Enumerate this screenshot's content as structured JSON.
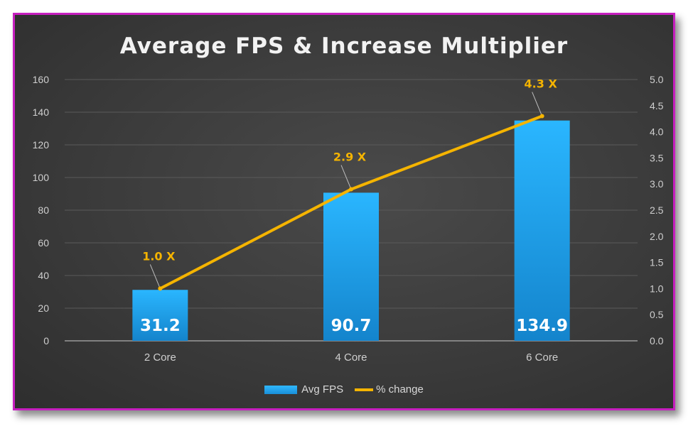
{
  "chart_data": {
    "type": "bar",
    "title": "Average FPS & Increase Multiplier",
    "categories": [
      "2 Core",
      "4 Core",
      "6 Core"
    ],
    "series": [
      {
        "name": "Avg FPS",
        "type": "bar",
        "axis": "left",
        "values": [
          31.2,
          90.7,
          134.9
        ],
        "labels": [
          "31.2",
          "90.7",
          "134.9"
        ],
        "color": "#1ea7f0"
      },
      {
        "name": "% change",
        "type": "line",
        "axis": "right",
        "values": [
          1.0,
          2.9,
          4.3
        ],
        "labels": [
          "1.0 X",
          "2.9 X",
          "4.3 X"
        ],
        "color": "#f5b400"
      }
    ],
    "y_left": {
      "min": 0,
      "max": 160,
      "step": 20,
      "ticks": [
        "0",
        "20",
        "40",
        "60",
        "80",
        "100",
        "120",
        "140",
        "160"
      ]
    },
    "y_right": {
      "min": 0,
      "max": 5,
      "step": 0.5,
      "ticks": [
        "0.0",
        "0.5",
        "1.0",
        "1.5",
        "2.0",
        "2.5",
        "3.0",
        "3.5",
        "4.0",
        "4.5",
        "5.0"
      ]
    },
    "grid": true,
    "legend_position": "bottom",
    "colors": {
      "background": "#3b3b3b",
      "frame": "#c61fbf",
      "gridline": "#5a5a5a",
      "axis_text": "#cfcfcf",
      "bar_label": "#ffffff",
      "line_label": "#f5b400"
    }
  }
}
